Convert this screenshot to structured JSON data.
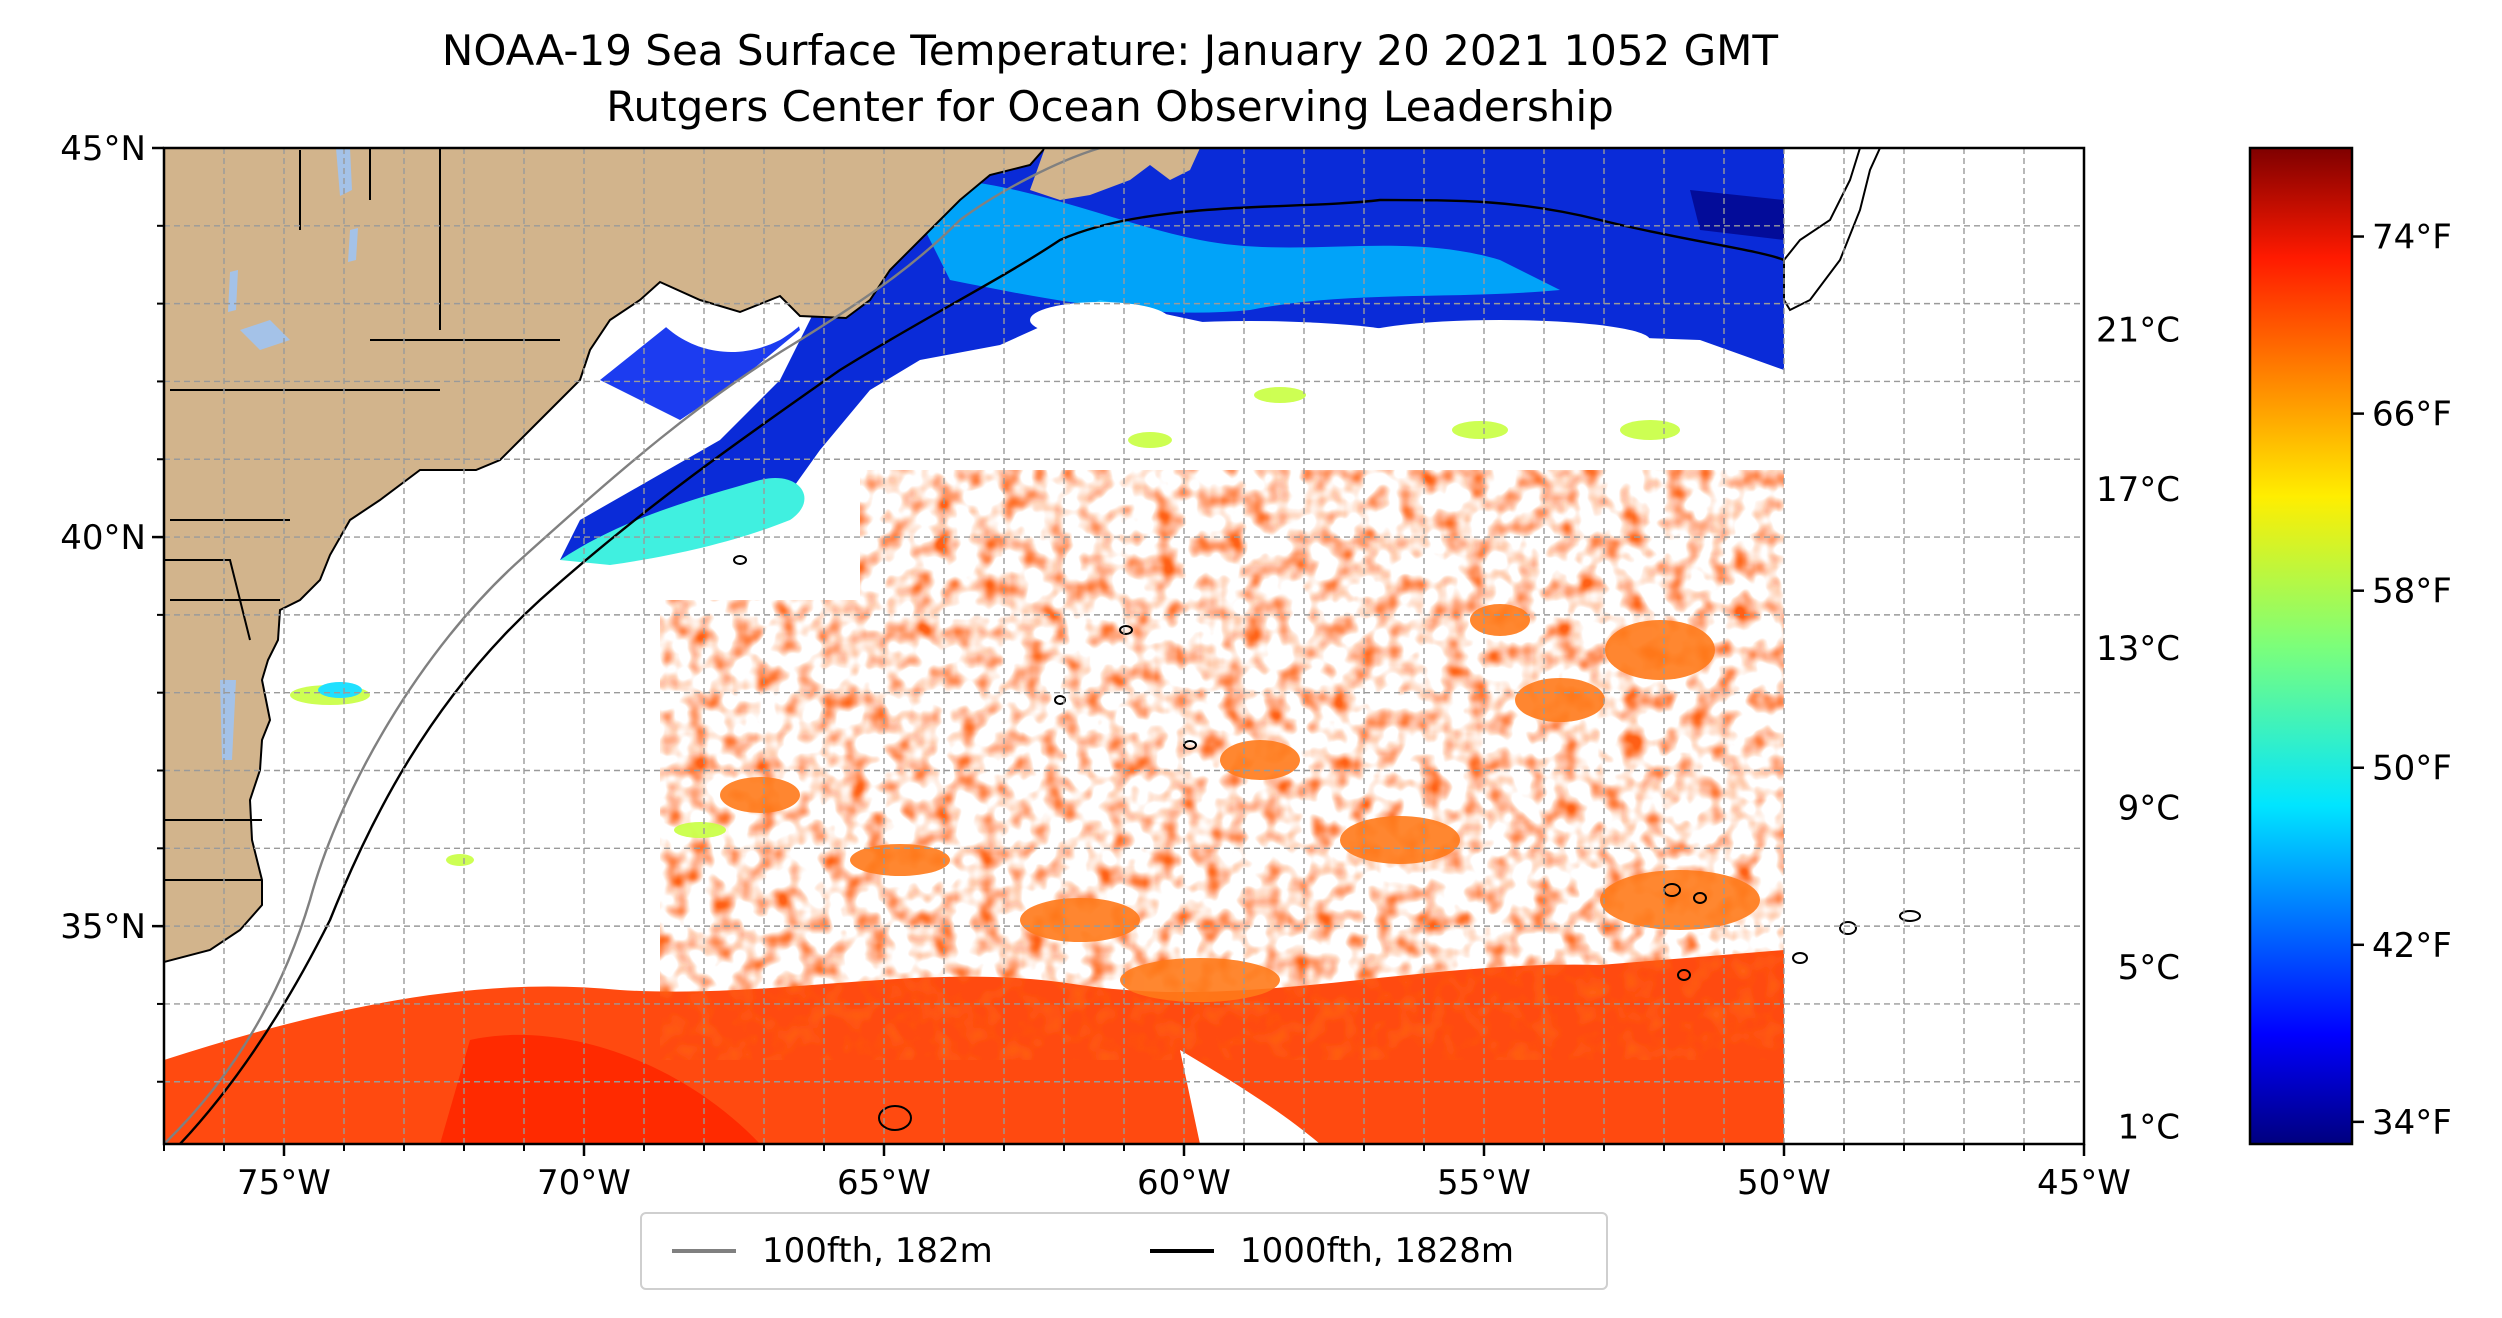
{
  "title": {
    "line1": "NOAA-19 Sea Surface Temperature: January 20 2021 1052 GMT",
    "line2": "Rutgers Center for Ocean Observing Leadership"
  },
  "map": {
    "lon_range": [
      -77,
      -45
    ],
    "lat_range": [
      32.2,
      45
    ],
    "lat_ticks": [
      {
        "value": 45,
        "label": "45°N"
      },
      {
        "value": 40,
        "label": "40°N"
      },
      {
        "value": 35,
        "label": "35°N"
      }
    ],
    "lon_ticks": [
      {
        "value": -75,
        "label": "75°W"
      },
      {
        "value": -70,
        "label": "70°W"
      },
      {
        "value": -65,
        "label": "65°W"
      },
      {
        "value": -60,
        "label": "60°W"
      },
      {
        "value": -55,
        "label": "55°W"
      },
      {
        "value": -50,
        "label": "50°W"
      },
      {
        "value": -45,
        "label": "45°W"
      }
    ],
    "gridlines": true,
    "land_color": "#d2b48c",
    "lake_color": "#a4c2e8"
  },
  "colorbar": {
    "colormap": "jet",
    "range_f": [
      33,
      78
    ],
    "fahrenheit_ticks": [
      {
        "value": 74,
        "label": "74°F"
      },
      {
        "value": 66,
        "label": "66°F"
      },
      {
        "value": 58,
        "label": "58°F"
      },
      {
        "value": 50,
        "label": "50°F"
      },
      {
        "value": 42,
        "label": "42°F"
      },
      {
        "value": 34,
        "label": "34°F"
      }
    ],
    "celsius_ticks": [
      {
        "value": 21,
        "label": "21°C"
      },
      {
        "value": 17,
        "label": "17°C"
      },
      {
        "value": 13,
        "label": "13°C"
      },
      {
        "value": 9,
        "label": "9°C"
      },
      {
        "value": 5,
        "label": "5°C"
      },
      {
        "value": 1,
        "label": "1°C"
      }
    ]
  },
  "legend": {
    "items": [
      {
        "label": "100fth, 182m",
        "color": "#808080"
      },
      {
        "label": "1000fth, 1828m",
        "color": "#000000"
      }
    ]
  }
}
